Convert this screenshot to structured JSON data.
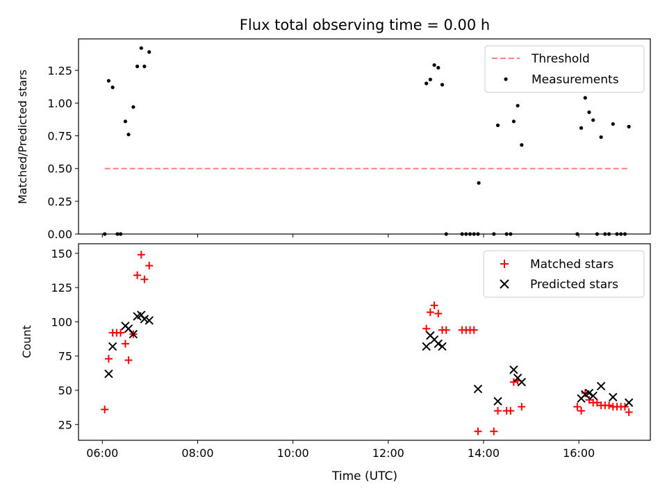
{
  "chart_data": [
    {
      "type": "scatter",
      "title": "Flux total observing time = 0.00 h",
      "xlabel": "",
      "ylabel": "Matched/Predicted stars",
      "xlim": [
        "05:30",
        "17:30"
      ],
      "ylim": [
        0,
        1.49
      ],
      "x_ticks": [
        "06:00",
        "08:00",
        "10:00",
        "12:00",
        "14:00",
        "16:00"
      ],
      "y_ticks": [
        "0.00",
        "0.25",
        "0.50",
        "0.75",
        "1.00",
        "1.25"
      ],
      "legend_position": "top-right",
      "series": [
        {
          "name": "Threshold",
          "style": "dashed-line",
          "color": "#ff8080",
          "points": [
            [
              "06:03",
              0.5
            ],
            [
              "17:03",
              0.5
            ]
          ]
        },
        {
          "name": "Measurements",
          "style": "dot",
          "color": "#000000",
          "points": [
            [
              "06:03",
              0.0
            ],
            [
              "06:08",
              1.17
            ],
            [
              "06:13",
              1.12
            ],
            [
              "06:19",
              0.0
            ],
            [
              "06:23",
              0.0
            ],
            [
              "06:29",
              0.86
            ],
            [
              "06:33",
              0.76
            ],
            [
              "06:39",
              0.97
            ],
            [
              "06:44",
              1.28
            ],
            [
              "06:49",
              1.42
            ],
            [
              "06:53",
              1.28
            ],
            [
              "06:59",
              1.39
            ],
            [
              "12:48",
              1.15
            ],
            [
              "12:53",
              1.18
            ],
            [
              "12:58",
              1.29
            ],
            [
              "13:03",
              1.27
            ],
            [
              "13:08",
              1.14
            ],
            [
              "13:13",
              0.0
            ],
            [
              "13:33",
              0.0
            ],
            [
              "13:38",
              0.0
            ],
            [
              "13:43",
              0.0
            ],
            [
              "13:48",
              0.0
            ],
            [
              "13:53",
              0.0
            ],
            [
              "13:54",
              0.39
            ],
            [
              "14:13",
              0.0
            ],
            [
              "14:18",
              0.83
            ],
            [
              "14:29",
              0.0
            ],
            [
              "14:34",
              0.0
            ],
            [
              "14:38",
              0.86
            ],
            [
              "14:43",
              0.98
            ],
            [
              "14:48",
              0.68
            ],
            [
              "15:58",
              0.0
            ],
            [
              "16:03",
              0.81
            ],
            [
              "16:08",
              1.04
            ],
            [
              "16:13",
              0.93
            ],
            [
              "16:18",
              0.87
            ],
            [
              "16:23",
              0.0
            ],
            [
              "16:28",
              0.74
            ],
            [
              "16:33",
              0.0
            ],
            [
              "16:38",
              0.0
            ],
            [
              "16:43",
              0.84
            ],
            [
              "16:48",
              0.0
            ],
            [
              "16:53",
              0.0
            ],
            [
              "16:58",
              0.0
            ],
            [
              "17:03",
              0.82
            ]
          ]
        }
      ]
    },
    {
      "type": "scatter",
      "title": "",
      "xlabel": "Time (UTC)",
      "ylabel": "Count",
      "xlim": [
        "05:30",
        "17:30"
      ],
      "ylim": [
        13.5,
        157
      ],
      "x_ticks": [
        "06:00",
        "08:00",
        "10:00",
        "12:00",
        "14:00",
        "16:00"
      ],
      "y_ticks": [
        "25",
        "50",
        "75",
        "100",
        "125",
        "150"
      ],
      "legend_position": "top-right",
      "series": [
        {
          "name": "Matched stars",
          "marker": "plus",
          "color": "#ff0000",
          "points": [
            [
              "06:03",
              36
            ],
            [
              "06:08",
              73
            ],
            [
              "06:13",
              92
            ],
            [
              "06:18",
              92
            ],
            [
              "06:23",
              92
            ],
            [
              "06:29",
              84
            ],
            [
              "06:33",
              72
            ],
            [
              "06:39",
              91
            ],
            [
              "06:44",
              134
            ],
            [
              "06:49",
              149
            ],
            [
              "06:53",
              131
            ],
            [
              "06:59",
              141
            ],
            [
              "12:48",
              95
            ],
            [
              "12:53",
              107
            ],
            [
              "12:58",
              112
            ],
            [
              "13:03",
              106
            ],
            [
              "13:08",
              94
            ],
            [
              "13:13",
              94
            ],
            [
              "13:33",
              94
            ],
            [
              "13:38",
              94
            ],
            [
              "13:43",
              94
            ],
            [
              "13:48",
              94
            ],
            [
              "13:53",
              20
            ],
            [
              "14:13",
              20
            ],
            [
              "14:18",
              35
            ],
            [
              "14:29",
              35
            ],
            [
              "14:34",
              35
            ],
            [
              "14:38",
              56
            ],
            [
              "14:43",
              57
            ],
            [
              "14:48",
              38
            ],
            [
              "15:58",
              38
            ],
            [
              "16:03",
              35
            ],
            [
              "16:08",
              48
            ],
            [
              "16:13",
              43
            ],
            [
              "16:18",
              41
            ],
            [
              "16:23",
              41
            ],
            [
              "16:28",
              39
            ],
            [
              "16:33",
              39
            ],
            [
              "16:38",
              39
            ],
            [
              "16:43",
              38
            ],
            [
              "16:48",
              38
            ],
            [
              "16:53",
              38
            ],
            [
              "16:58",
              38
            ],
            [
              "17:03",
              34
            ]
          ]
        },
        {
          "name": "Predicted stars",
          "marker": "x",
          "color": "#000000",
          "points": [
            [
              "06:08",
              62
            ],
            [
              "06:13",
              82
            ],
            [
              "06:29",
              97
            ],
            [
              "06:33",
              95
            ],
            [
              "06:39",
              91
            ],
            [
              "06:44",
              104
            ],
            [
              "06:49",
              105
            ],
            [
              "06:53",
              102
            ],
            [
              "06:59",
              101
            ],
            [
              "12:48",
              82
            ],
            [
              "12:53",
              90
            ],
            [
              "12:58",
              87
            ],
            [
              "13:03",
              84
            ],
            [
              "13:08",
              82
            ],
            [
              "13:53",
              51
            ],
            [
              "14:18",
              42
            ],
            [
              "14:38",
              65
            ],
            [
              "14:43",
              59
            ],
            [
              "14:48",
              56
            ],
            [
              "16:03",
              44
            ],
            [
              "16:08",
              47
            ],
            [
              "16:13",
              48
            ],
            [
              "16:18",
              46
            ],
            [
              "16:28",
              53
            ],
            [
              "16:43",
              45
            ],
            [
              "17:03",
              41
            ]
          ]
        }
      ]
    }
  ]
}
